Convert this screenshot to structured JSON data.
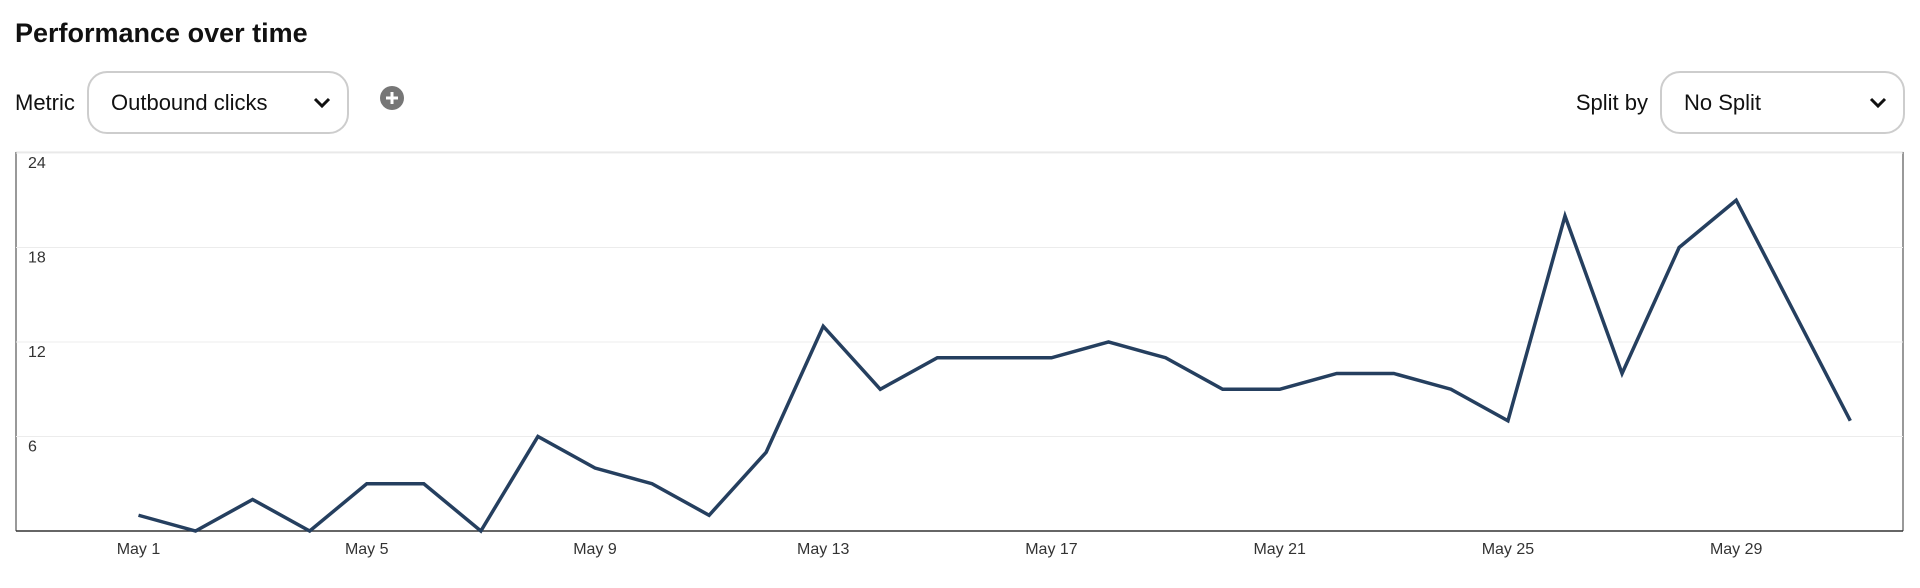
{
  "header": {
    "title": "Performance over time"
  },
  "controls": {
    "metric_label": "Metric",
    "metric_value": "Outbound clicks",
    "split_label": "Split by",
    "split_value": "No Split"
  },
  "chart_data": {
    "type": "line",
    "categories": [
      "May 1",
      null,
      null,
      null,
      "May 5",
      null,
      null,
      null,
      "May 9",
      null,
      null,
      null,
      "May 13",
      null,
      null,
      null,
      "May 17",
      null,
      null,
      null,
      "May 21",
      null,
      null,
      null,
      "May 25",
      null,
      null,
      null,
      "May 29",
      null,
      null
    ],
    "series": [
      {
        "color": "#253f5f",
        "values": [
          1,
          0,
          2,
          0,
          3,
          3,
          0,
          6,
          4,
          3,
          1,
          5,
          13,
          9,
          11,
          11,
          11,
          12,
          11,
          9,
          9,
          10,
          10,
          9,
          7,
          20,
          10,
          18,
          21,
          14,
          7
        ]
      }
    ],
    "ylim": [
      0,
      24
    ],
    "yticks": [
      6,
      12,
      18,
      24
    ],
    "grid": true
  }
}
